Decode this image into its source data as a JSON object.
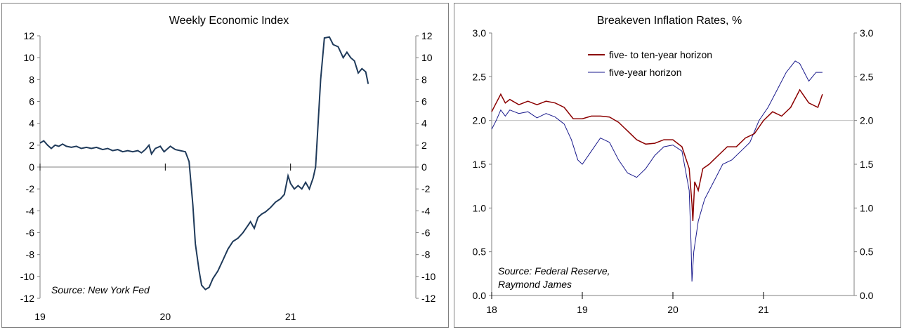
{
  "colors": {
    "wei": "#1f3a5a",
    "five_ten": "#8b0000",
    "five": "#1a1a8c",
    "frame": "#808080",
    "refline": "#c0c0c0"
  },
  "chart_data": [
    {
      "type": "line",
      "title": "Weekly Economic Index",
      "source": "Source: New York Fed",
      "y_ticks": [
        "12",
        "10",
        "8",
        "6",
        "4",
        "2",
        "0",
        "-2",
        "-4",
        "-6",
        "-8",
        "-10",
        "-12"
      ],
      "x_ticks": [
        "19",
        "20",
        "21"
      ],
      "ylim": [
        -12,
        12
      ],
      "xlim": [
        2019.0,
        2022.0
      ],
      "grid": false,
      "series": [
        {
          "values": [
            [
              2019.0,
              2.2
            ],
            [
              2019.03,
              2.4
            ],
            [
              2019.06,
              2.0
            ],
            [
              2019.09,
              1.7
            ],
            [
              2019.12,
              2.0
            ],
            [
              2019.15,
              1.9
            ],
            [
              2019.18,
              2.1
            ],
            [
              2019.21,
              1.9
            ],
            [
              2019.25,
              1.8
            ],
            [
              2019.29,
              1.9
            ],
            [
              2019.33,
              1.7
            ],
            [
              2019.37,
              1.8
            ],
            [
              2019.41,
              1.7
            ],
            [
              2019.45,
              1.8
            ],
            [
              2019.5,
              1.6
            ],
            [
              2019.54,
              1.7
            ],
            [
              2019.58,
              1.5
            ],
            [
              2019.62,
              1.6
            ],
            [
              2019.66,
              1.4
            ],
            [
              2019.7,
              1.5
            ],
            [
              2019.74,
              1.4
            ],
            [
              2019.78,
              1.5
            ],
            [
              2019.81,
              1.3
            ],
            [
              2019.84,
              1.6
            ],
            [
              2019.87,
              2.0
            ],
            [
              2019.89,
              1.2
            ],
            [
              2019.92,
              1.7
            ],
            [
              2019.96,
              1.9
            ],
            [
              2019.99,
              1.4
            ],
            [
              2020.04,
              1.9
            ],
            [
              2020.08,
              1.6
            ],
            [
              2020.12,
              1.5
            ],
            [
              2020.16,
              1.4
            ],
            [
              2020.19,
              0.5
            ],
            [
              2020.22,
              -3.5
            ],
            [
              2020.24,
              -7.0
            ],
            [
              2020.27,
              -9.5
            ],
            [
              2020.29,
              -10.8
            ],
            [
              2020.32,
              -11.2
            ],
            [
              2020.35,
              -11.0
            ],
            [
              2020.38,
              -10.2
            ],
            [
              2020.42,
              -9.5
            ],
            [
              2020.46,
              -8.5
            ],
            [
              2020.5,
              -7.5
            ],
            [
              2020.54,
              -6.8
            ],
            [
              2020.58,
              -6.5
            ],
            [
              2020.62,
              -6.0
            ],
            [
              2020.65,
              -5.5
            ],
            [
              2020.68,
              -5.0
            ],
            [
              2020.71,
              -5.6
            ],
            [
              2020.74,
              -4.6
            ],
            [
              2020.77,
              -4.3
            ],
            [
              2020.8,
              -4.1
            ],
            [
              2020.84,
              -3.7
            ],
            [
              2020.88,
              -3.2
            ],
            [
              2020.92,
              -2.9
            ],
            [
              2020.95,
              -2.5
            ],
            [
              2020.98,
              -0.8
            ],
            [
              2021.0,
              -1.5
            ],
            [
              2021.03,
              -2.0
            ],
            [
              2021.06,
              -1.7
            ],
            [
              2021.09,
              -2.0
            ],
            [
              2021.12,
              -1.4
            ],
            [
              2021.15,
              -2.0
            ],
            [
              2021.18,
              -1.0
            ],
            [
              2021.2,
              0.0
            ],
            [
              2021.22,
              4.0
            ],
            [
              2021.24,
              8.0
            ],
            [
              2021.27,
              11.8
            ],
            [
              2021.31,
              11.9
            ],
            [
              2021.34,
              11.2
            ],
            [
              2021.38,
              11.0
            ],
            [
              2021.42,
              10.0
            ],
            [
              2021.45,
              10.5
            ],
            [
              2021.48,
              10.0
            ],
            [
              2021.51,
              9.7
            ],
            [
              2021.54,
              8.6
            ],
            [
              2021.57,
              9.0
            ],
            [
              2021.6,
              8.7
            ],
            [
              2021.62,
              7.6
            ]
          ]
        }
      ]
    },
    {
      "type": "line",
      "title": "Breakeven Inflation Rates, %",
      "source_lines": [
        "Source: Federal Reserve,",
        "Raymond James"
      ],
      "y_ticks": [
        "3.0",
        "2.5",
        "2.0",
        "1.5",
        "1.0",
        "0.5",
        "0.0"
      ],
      "x_ticks": [
        "18",
        "19",
        "20",
        "21"
      ],
      "ylim": [
        0.0,
        3.0
      ],
      "xlim": [
        2018.0,
        2022.0
      ],
      "reference_line": 2.0,
      "grid": false,
      "legend": "top-center",
      "series": [
        {
          "name": "five- to ten-year horizon",
          "values": [
            [
              2018.0,
              2.1
            ],
            [
              2018.05,
              2.2
            ],
            [
              2018.1,
              2.3
            ],
            [
              2018.15,
              2.2
            ],
            [
              2018.2,
              2.24
            ],
            [
              2018.3,
              2.18
            ],
            [
              2018.4,
              2.22
            ],
            [
              2018.5,
              2.18
            ],
            [
              2018.6,
              2.22
            ],
            [
              2018.7,
              2.2
            ],
            [
              2018.8,
              2.15
            ],
            [
              2018.9,
              2.02
            ],
            [
              2019.0,
              2.02
            ],
            [
              2019.1,
              2.05
            ],
            [
              2019.2,
              2.05
            ],
            [
              2019.3,
              2.04
            ],
            [
              2019.4,
              1.98
            ],
            [
              2019.5,
              1.88
            ],
            [
              2019.6,
              1.78
            ],
            [
              2019.7,
              1.73
            ],
            [
              2019.8,
              1.74
            ],
            [
              2019.9,
              1.78
            ],
            [
              2020.0,
              1.78
            ],
            [
              2020.1,
              1.7
            ],
            [
              2020.18,
              1.45
            ],
            [
              2020.21,
              1.05
            ],
            [
              2020.22,
              0.85
            ],
            [
              2020.24,
              1.3
            ],
            [
              2020.28,
              1.2
            ],
            [
              2020.33,
              1.45
            ],
            [
              2020.4,
              1.5
            ],
            [
              2020.5,
              1.6
            ],
            [
              2020.6,
              1.7
            ],
            [
              2020.7,
              1.7
            ],
            [
              2020.8,
              1.8
            ],
            [
              2020.9,
              1.85
            ],
            [
              2021.0,
              2.0
            ],
            [
              2021.1,
              2.1
            ],
            [
              2021.2,
              2.05
            ],
            [
              2021.3,
              2.15
            ],
            [
              2021.4,
              2.35
            ],
            [
              2021.5,
              2.2
            ],
            [
              2021.6,
              2.15
            ],
            [
              2021.65,
              2.3
            ]
          ]
        },
        {
          "name": "five-year horizon",
          "values": [
            [
              2018.0,
              1.9
            ],
            [
              2018.05,
              2.0
            ],
            [
              2018.1,
              2.12
            ],
            [
              2018.15,
              2.05
            ],
            [
              2018.2,
              2.12
            ],
            [
              2018.3,
              2.08
            ],
            [
              2018.4,
              2.1
            ],
            [
              2018.5,
              2.03
            ],
            [
              2018.6,
              2.08
            ],
            [
              2018.7,
              2.04
            ],
            [
              2018.8,
              1.96
            ],
            [
              2018.88,
              1.78
            ],
            [
              2018.95,
              1.55
            ],
            [
              2019.0,
              1.5
            ],
            [
              2019.1,
              1.65
            ],
            [
              2019.2,
              1.8
            ],
            [
              2019.3,
              1.75
            ],
            [
              2019.4,
              1.55
            ],
            [
              2019.5,
              1.4
            ],
            [
              2019.6,
              1.35
            ],
            [
              2019.7,
              1.45
            ],
            [
              2019.8,
              1.6
            ],
            [
              2019.9,
              1.7
            ],
            [
              2020.0,
              1.72
            ],
            [
              2020.1,
              1.65
            ],
            [
              2020.18,
              1.2
            ],
            [
              2020.2,
              0.6
            ],
            [
              2020.21,
              0.16
            ],
            [
              2020.23,
              0.5
            ],
            [
              2020.28,
              0.85
            ],
            [
              2020.35,
              1.1
            ],
            [
              2020.45,
              1.3
            ],
            [
              2020.55,
              1.5
            ],
            [
              2020.65,
              1.55
            ],
            [
              2020.75,
              1.65
            ],
            [
              2020.85,
              1.75
            ],
            [
              2020.95,
              2.0
            ],
            [
              2021.05,
              2.15
            ],
            [
              2021.15,
              2.35
            ],
            [
              2021.25,
              2.55
            ],
            [
              2021.35,
              2.68
            ],
            [
              2021.4,
              2.65
            ],
            [
              2021.5,
              2.45
            ],
            [
              2021.58,
              2.55
            ],
            [
              2021.65,
              2.55
            ]
          ]
        }
      ]
    }
  ]
}
